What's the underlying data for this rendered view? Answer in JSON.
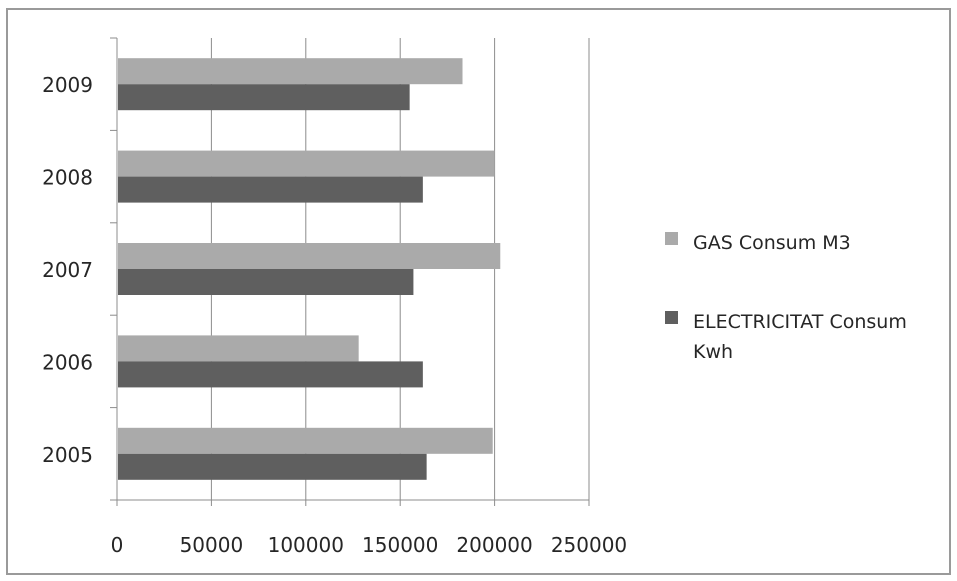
{
  "chart_data": {
    "type": "bar",
    "orientation": "horizontal",
    "categories": [
      "2005",
      "2006",
      "2007",
      "2008",
      "2009"
    ],
    "series": [
      {
        "name": "GAS Consum M3",
        "color": "#aaaaaa",
        "values": [
          199000,
          128000,
          203000,
          200000,
          183000
        ]
      },
      {
        "name": "ELECTRICITAT  Consum Kwh",
        "name_lines": [
          "ELECTRICITAT  Consum",
          "Kwh"
        ],
        "color": "#5f5f5f",
        "values": [
          164000,
          162000,
          157000,
          162000,
          155000
        ]
      }
    ],
    "xticks": [
      "0",
      "50000",
      "100000",
      "150000",
      "200000",
      "250000"
    ],
    "xlim": [
      0,
      250000
    ],
    "grid": true,
    "legend_position": "right"
  }
}
